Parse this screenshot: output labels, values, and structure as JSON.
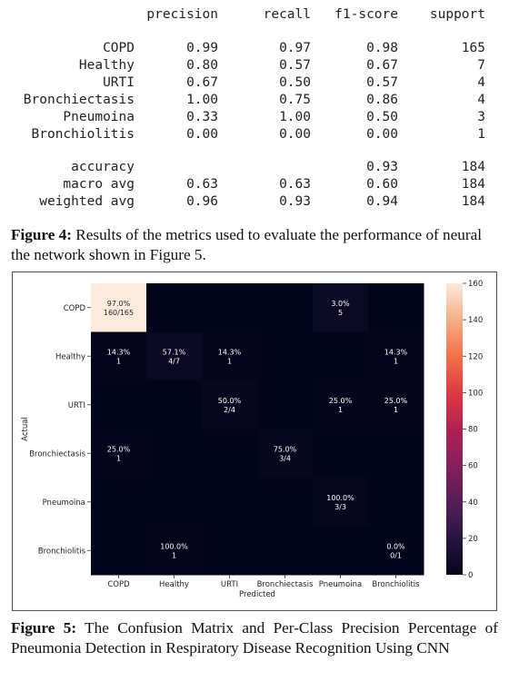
{
  "report": {
    "headers": [
      "precision",
      "recall",
      "f1-score",
      "support"
    ],
    "rows": [
      {
        "label": "COPD",
        "precision": "0.99",
        "recall": "0.97",
        "f1": "0.98",
        "support": "165"
      },
      {
        "label": "Healthy",
        "precision": "0.80",
        "recall": "0.57",
        "f1": "0.67",
        "support": "7"
      },
      {
        "label": "URTI",
        "precision": "0.67",
        "recall": "0.50",
        "f1": "0.57",
        "support": "4"
      },
      {
        "label": "Bronchiectasis",
        "precision": "1.00",
        "recall": "0.75",
        "f1": "0.86",
        "support": "4"
      },
      {
        "label": "Pneumoina",
        "precision": "0.33",
        "recall": "1.00",
        "f1": "0.50",
        "support": "3"
      },
      {
        "label": "Bronchiolitis",
        "precision": "0.00",
        "recall": "0.00",
        "f1": "0.00",
        "support": "1"
      }
    ],
    "summary": [
      {
        "label": "accuracy",
        "precision": "",
        "recall": "",
        "f1": "0.93",
        "support": "184"
      },
      {
        "label": "macro avg",
        "precision": "0.63",
        "recall": "0.63",
        "f1": "0.60",
        "support": "184"
      },
      {
        "label": "weighted avg",
        "precision": "0.96",
        "recall": "0.93",
        "f1": "0.94",
        "support": "184"
      }
    ]
  },
  "captions": {
    "fig4_label": "Figure 4:",
    "fig4_text": " Results of the metrics used to evaluate the performance of neural the network shown in Figure 5.",
    "fig5_label": "Figure 5:",
    "fig5_text": " The Confusion Matrix and Per-Class Precision Percentage of Pneumonia Detection in Respiratory Disease Recognition Using CNN"
  },
  "chart_data": {
    "type": "heatmap",
    "title": "",
    "xlabel": "Predicted",
    "ylabel": "Actual",
    "x_categories": [
      "COPD",
      "Healthy",
      "URTI",
      "Bronchiectasis",
      "Pneumoina",
      "Bronchiolitis"
    ],
    "y_categories": [
      "COPD",
      "Healthy",
      "URTI",
      "Bronchiectasis",
      "Pneumoina",
      "Bronchiolitis"
    ],
    "counts": [
      [
        160,
        0,
        0,
        0,
        5,
        0
      ],
      [
        1,
        4,
        1,
        0,
        0,
        1
      ],
      [
        0,
        0,
        2,
        0,
        1,
        1
      ],
      [
        1,
        0,
        0,
        3,
        0,
        0
      ],
      [
        0,
        0,
        0,
        0,
        3,
        0
      ],
      [
        0,
        1,
        0,
        0,
        0,
        0
      ]
    ],
    "annotations": [
      [
        {
          "pct": "97.0%",
          "frac": "160/165"
        },
        null,
        null,
        null,
        {
          "pct": "3.0%",
          "frac": "5"
        },
        null
      ],
      [
        {
          "pct": "14.3%",
          "frac": "1"
        },
        {
          "pct": "57.1%",
          "frac": "4/7"
        },
        {
          "pct": "14.3%",
          "frac": "1"
        },
        null,
        null,
        {
          "pct": "14.3%",
          "frac": "1"
        }
      ],
      [
        null,
        null,
        {
          "pct": "50.0%",
          "frac": "2/4"
        },
        null,
        {
          "pct": "25.0%",
          "frac": "1"
        },
        {
          "pct": "25.0%",
          "frac": "1"
        }
      ],
      [
        {
          "pct": "25.0%",
          "frac": "1"
        },
        null,
        null,
        {
          "pct": "75.0%",
          "frac": "3/4"
        },
        null,
        null
      ],
      [
        null,
        null,
        null,
        null,
        {
          "pct": "100.0%",
          "frac": "3/3"
        },
        null
      ],
      [
        null,
        {
          "pct": "100.0%",
          "frac": "1"
        },
        null,
        null,
        null,
        {
          "pct": "0.0%",
          "frac": "0/1"
        }
      ]
    ],
    "colorbar": {
      "min": 0,
      "max": 160,
      "ticks": [
        "0",
        "20",
        "40",
        "60",
        "80",
        "100",
        "120",
        "140",
        "160"
      ]
    },
    "colormap": "rocket",
    "colors": {
      "low": "#03051a",
      "high": "#faebdd"
    }
  }
}
